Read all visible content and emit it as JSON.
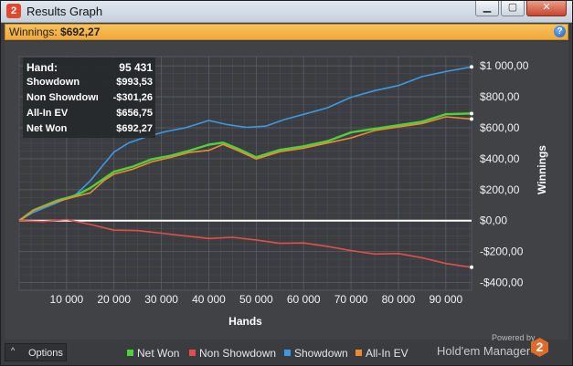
{
  "window": {
    "badge": "2",
    "title": "Results Graph",
    "buttons": {
      "minimize": "▁",
      "maximize": "▢",
      "close": "✕"
    }
  },
  "winnings_bar": {
    "label": "Winnings:",
    "value": "$692,27",
    "help": "?"
  },
  "summary": [
    {
      "key": "Hand:",
      "value": "95 431"
    },
    {
      "key": "Showdown",
      "value": "$993,53"
    },
    {
      "key": "Non Showdown",
      "value": "-$301,26"
    },
    {
      "key": "All-In EV",
      "value": "$656,75"
    },
    {
      "key": "Net Won",
      "value": "$692,27"
    }
  ],
  "footer": {
    "options_label": "Options",
    "options_caret": "^",
    "legend": [
      {
        "label": "Net Won",
        "color": "#4cd23c"
      },
      {
        "label": "Non Showdown",
        "color": "#e0504a"
      },
      {
        "label": "Showdown",
        "color": "#3c9ae4"
      },
      {
        "label": "All-In EV",
        "color": "#f08a30"
      }
    ],
    "powered_by": "Powered by",
    "brand": "Hold'em Manager",
    "brand_badge": "2"
  },
  "chart_data": {
    "type": "line",
    "xlabel": "Hands",
    "ylabel": "Winnings",
    "x_ticks": [
      10000,
      20000,
      30000,
      40000,
      50000,
      60000,
      70000,
      80000,
      90000
    ],
    "x_tick_labels": [
      "10 000",
      "20 000",
      "30 000",
      "40 000",
      "50 000",
      "60 000",
      "70 000",
      "80 000",
      "90 000"
    ],
    "xlim": [
      0,
      95431
    ],
    "y_ticks": [
      -400,
      -200,
      0,
      200,
      400,
      600,
      800,
      1000
    ],
    "y_tick_labels": [
      "-$400,00",
      "-$200,00",
      "$0,00",
      "$200,00",
      "$400,00",
      "$600,00",
      "$800,00",
      "$1 000,00"
    ],
    "ylim": [
      -450,
      1060
    ],
    "grid": true,
    "legend_position": "bottom",
    "series": [
      {
        "name": "Showdown",
        "color": "#3c9ae4",
        "x": [
          0,
          3000,
          8000,
          12000,
          15000,
          18000,
          20000,
          23000,
          27000,
          31000,
          35000,
          40000,
          44000,
          48000,
          52000,
          56000,
          60000,
          65000,
          70000,
          75000,
          80000,
          85000,
          90000,
          95431
        ],
        "y": [
          0,
          50,
          120,
          180,
          250,
          370,
          450,
          490,
          540,
          580,
          610,
          640,
          620,
          610,
          600,
          650,
          690,
          740,
          790,
          840,
          880,
          920,
          960,
          993.53
        ]
      },
      {
        "name": "Net Won",
        "color": "#4cd23c",
        "x": [
          0,
          3000,
          8000,
          12000,
          15000,
          18000,
          20000,
          24000,
          28000,
          32000,
          36000,
          40000,
          43000,
          46000,
          50000,
          55000,
          60000,
          65000,
          70000,
          75000,
          80000,
          85000,
          90000,
          95431
        ],
        "y": [
          0,
          60,
          130,
          170,
          200,
          270,
          320,
          360,
          390,
          420,
          460,
          480,
          500,
          470,
          420,
          450,
          480,
          520,
          560,
          590,
          620,
          650,
          680,
          692.27
        ]
      },
      {
        "name": "All-In EV",
        "color": "#f08a30",
        "x": [
          0,
          3000,
          8000,
          12000,
          15000,
          18000,
          20000,
          24000,
          28000,
          32000,
          36000,
          40000,
          43000,
          46000,
          50000,
          55000,
          60000,
          65000,
          70000,
          75000,
          80000,
          85000,
          90000,
          95431
        ],
        "y": [
          0,
          55,
          120,
          160,
          190,
          255,
          300,
          340,
          370,
          405,
          445,
          465,
          485,
          455,
          405,
          435,
          465,
          505,
          545,
          575,
          605,
          635,
          660,
          656.75
        ]
      },
      {
        "name": "Non Showdown",
        "color": "#e0504a",
        "x": [
          0,
          5000,
          10000,
          15000,
          20000,
          25000,
          30000,
          35000,
          40000,
          45000,
          50000,
          55000,
          60000,
          65000,
          70000,
          75000,
          80000,
          85000,
          90000,
          95431
        ],
        "y": [
          0,
          5,
          0,
          -25,
          -55,
          -75,
          -85,
          -95,
          -105,
          -115,
          -125,
          -140,
          -155,
          -170,
          -190,
          -205,
          -220,
          -240,
          -270,
          -301.26
        ]
      }
    ]
  }
}
